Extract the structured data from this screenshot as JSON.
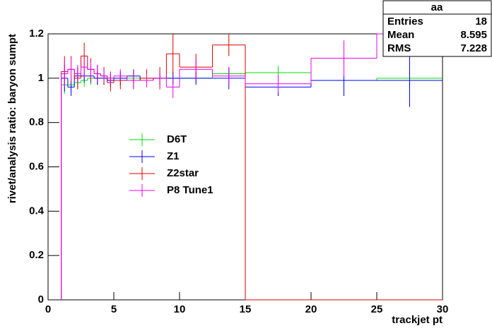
{
  "chart_data": {
    "type": "histogram",
    "xlabel": "trackjet pt",
    "ylabel": "rivet/analysis ratio: baryon sumpt",
    "bins": [
      1,
      1.5,
      2,
      2.5,
      3,
      3.5,
      4,
      4.5,
      5,
      6,
      7,
      8,
      9,
      10,
      12.5,
      15,
      20,
      25,
      30
    ],
    "series": [
      {
        "name": "D6T",
        "color": "#00e000",
        "values": [
          0.97,
          0.97,
          0.98,
          0.99,
          1.0,
          1.0,
          1.0,
          1.0,
          1.0,
          1.0,
          1.0,
          1.0,
          1.0,
          1.0,
          1.02,
          1.025,
          0.99,
          1.0
        ],
        "errors": [
          0.04,
          0.03,
          0.03,
          0.03,
          0.03,
          0.03,
          0.03,
          0.03,
          0.02,
          0.02,
          0.02,
          0.02,
          0.02,
          0.02,
          0.02,
          0.03,
          0.03,
          0.03
        ]
      },
      {
        "name": "Z1",
        "color": "#0000ff",
        "values": [
          1.0,
          0.96,
          1.01,
          1.01,
          1.01,
          1.0,
          1.0,
          0.99,
          1.0,
          1.01,
          0.99,
          1.0,
          1.0,
          1.0,
          1.0,
          0.96,
          0.99,
          0.99
        ],
        "errors": [
          0.06,
          0.04,
          0.03,
          0.03,
          0.03,
          0.03,
          0.03,
          0.03,
          0.03,
          0.03,
          0.03,
          0.03,
          0.03,
          0.03,
          0.05,
          0.04,
          0.07,
          0.12
        ]
      },
      {
        "name": "Z2star",
        "color": "#dd0000",
        "values": [
          1.03,
          1.04,
          1.0,
          1.1,
          1.04,
          1.02,
          1.01,
          0.98,
          0.99,
          0.99,
          1.0,
          1.0,
          1.11,
          1.05,
          1.15,
          0,
          0,
          0
        ],
        "errors": [
          0.07,
          0.06,
          0.05,
          0.06,
          0.05,
          0.04,
          0.04,
          0.04,
          0.04,
          0.04,
          0.04,
          0.05,
          0.09,
          0.06,
          0.05,
          0,
          0,
          0
        ]
      },
      {
        "name": "P8 Tune1",
        "color": "#ee00ee",
        "values": [
          1.02,
          1.04,
          1.02,
          1.05,
          1.04,
          1.02,
          1.01,
          1.0,
          1.01,
          0.99,
          0.99,
          1.0,
          0.96,
          1.04,
          1.01,
          0.975,
          1.09,
          1.2
        ],
        "errors": [
          0.06,
          0.05,
          0.04,
          0.05,
          0.04,
          0.04,
          0.03,
          0.03,
          0.03,
          0.03,
          0.03,
          0.03,
          0.05,
          0.05,
          0.04,
          0.04,
          0.08,
          0.08
        ]
      }
    ],
    "xlim": [
      0,
      30
    ],
    "xticks": [
      0,
      5,
      10,
      15,
      20,
      25,
      30
    ],
    "ylim": [
      0,
      1.2
    ],
    "yticks": [
      0,
      0.2,
      0.4,
      0.6,
      0.8,
      1,
      1.2
    ],
    "stats": {
      "title": "aa",
      "rows": [
        {
          "label": "Entries",
          "value": 18
        },
        {
          "label": "Mean",
          "value": 8.595
        },
        {
          "label": "RMS",
          "value": 7.228
        }
      ]
    }
  }
}
